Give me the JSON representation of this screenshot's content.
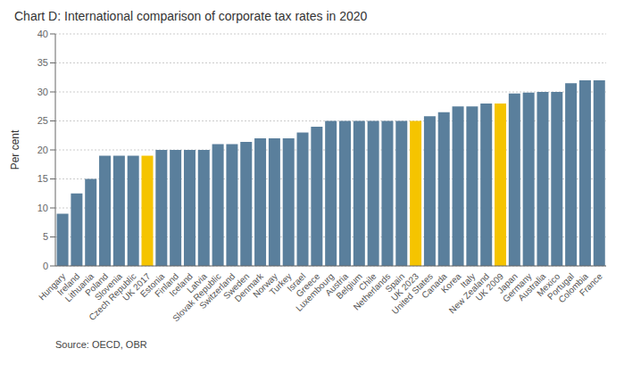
{
  "chart_data": {
    "type": "bar",
    "title": "Chart D:  International comparison of corporate tax rates in 2020",
    "ylabel": "Per cent",
    "source": "Source: OECD, OBR",
    "categories": [
      "Hungary",
      "Ireland",
      "Lithuania",
      "Poland",
      "Slovenia",
      "Czech Republic",
      "UK 2017",
      "Estonia",
      "Finland",
      "Iceland",
      "Latvia",
      "Slovak Republic",
      "Switzerland",
      "Sweden",
      "Denmark",
      "Norway",
      "Turkey",
      "Israel",
      "Greece",
      "Luxembourg",
      "Austria",
      "Belgium",
      "Chile",
      "Netherlands",
      "Spain",
      "UK 2023",
      "United States",
      "Canada",
      "Korea",
      "Italy",
      "New Zealand",
      "UK 2009",
      "Japan",
      "Germany",
      "Australia",
      "Mexico",
      "Portugal",
      "Colombia",
      "France"
    ],
    "values": [
      9,
      12.5,
      15,
      19,
      19,
      19,
      19,
      20,
      20,
      20,
      20,
      21,
      21,
      21.4,
      22,
      22,
      22,
      23,
      24,
      25,
      25,
      25,
      25,
      25,
      25,
      25,
      25.8,
      26.5,
      27.5,
      27.5,
      28,
      28,
      29.74,
      29.9,
      30,
      30,
      31.5,
      32,
      32
    ],
    "colors": [
      "#5a7f9c",
      "#5a7f9c",
      "#5a7f9c",
      "#5a7f9c",
      "#5a7f9c",
      "#5a7f9c",
      "#F5C400",
      "#5a7f9c",
      "#5a7f9c",
      "#5a7f9c",
      "#5a7f9c",
      "#5a7f9c",
      "#5a7f9c",
      "#5a7f9c",
      "#5a7f9c",
      "#5a7f9c",
      "#5a7f9c",
      "#5a7f9c",
      "#5a7f9c",
      "#5a7f9c",
      "#5a7f9c",
      "#5a7f9c",
      "#5a7f9c",
      "#5a7f9c",
      "#5a7f9c",
      "#F5C400",
      "#5a7f9c",
      "#5a7f9c",
      "#5a7f9c",
      "#5a7f9c",
      "#5a7f9c",
      "#F5C400",
      "#5a7f9c",
      "#5a7f9c",
      "#5a7f9c",
      "#5a7f9c",
      "#5a7f9c",
      "#5a7f9c",
      "#5a7f9c"
    ],
    "ylim": [
      0,
      40
    ],
    "yticks": [
      0,
      5,
      10,
      15,
      20,
      25,
      30,
      35,
      40
    ],
    "grid": true
  }
}
